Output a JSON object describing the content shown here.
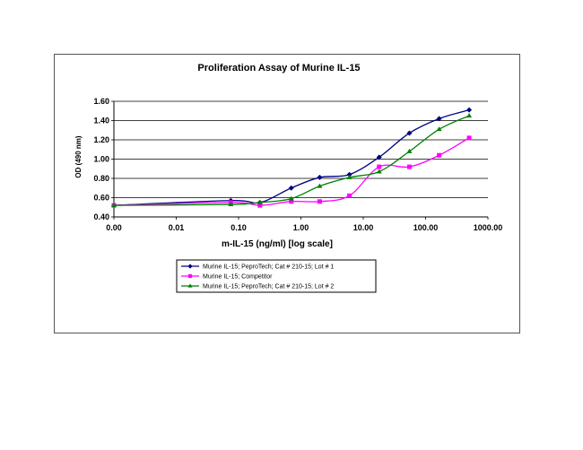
{
  "chart_data": {
    "type": "line",
    "title": "Proliferation Assay  of Murine IL-15",
    "xlabel": "m-IL-15 (ng/ml) [log scale]",
    "ylabel": "OD (490 nm)",
    "x_scale": "log",
    "xlim": [
      0.001,
      1000
    ],
    "ylim": [
      0.4,
      1.6
    ],
    "x_tick_labels": [
      "0.00",
      "0.01",
      "0.10",
      "1.00",
      "10.00",
      "100.00",
      "1000.00"
    ],
    "y_tick_labels": [
      "0.40",
      "0.60",
      "0.80",
      "1.00",
      "1.20",
      "1.40",
      "1.60"
    ],
    "grid": "horizontal",
    "legend": "bottom",
    "series": [
      {
        "name": "Murine IL-15; PeproTech; Cat # 210-15; Lot # 1",
        "color": "#000080",
        "marker": "diamond",
        "x": [
          0.001,
          0.075,
          0.22,
          0.7,
          2.0,
          6.0,
          18.0,
          55.0,
          165.0,
          500.0
        ],
        "y": [
          0.52,
          0.57,
          0.55,
          0.7,
          0.81,
          0.84,
          1.02,
          1.27,
          1.42,
          1.51
        ]
      },
      {
        "name": "Murine IL-15; Competitor",
        "color": "#FF00FF",
        "marker": "square",
        "x": [
          0.001,
          0.075,
          0.22,
          0.7,
          2.0,
          6.0,
          18.0,
          55.0,
          165.0,
          500.0
        ],
        "y": [
          0.52,
          0.55,
          0.52,
          0.56,
          0.56,
          0.62,
          0.92,
          0.92,
          1.04,
          1.22
        ]
      },
      {
        "name": "Murine IL-15; PeproTech; Cat # 210-15; Lot # 2",
        "color": "#008000",
        "marker": "triangle",
        "x": [
          0.001,
          0.075,
          0.22,
          0.7,
          2.0,
          6.0,
          18.0,
          55.0,
          165.0,
          500.0
        ],
        "y": [
          0.52,
          0.53,
          0.55,
          0.59,
          0.72,
          0.81,
          0.87,
          1.08,
          1.31,
          1.45
        ]
      }
    ]
  }
}
